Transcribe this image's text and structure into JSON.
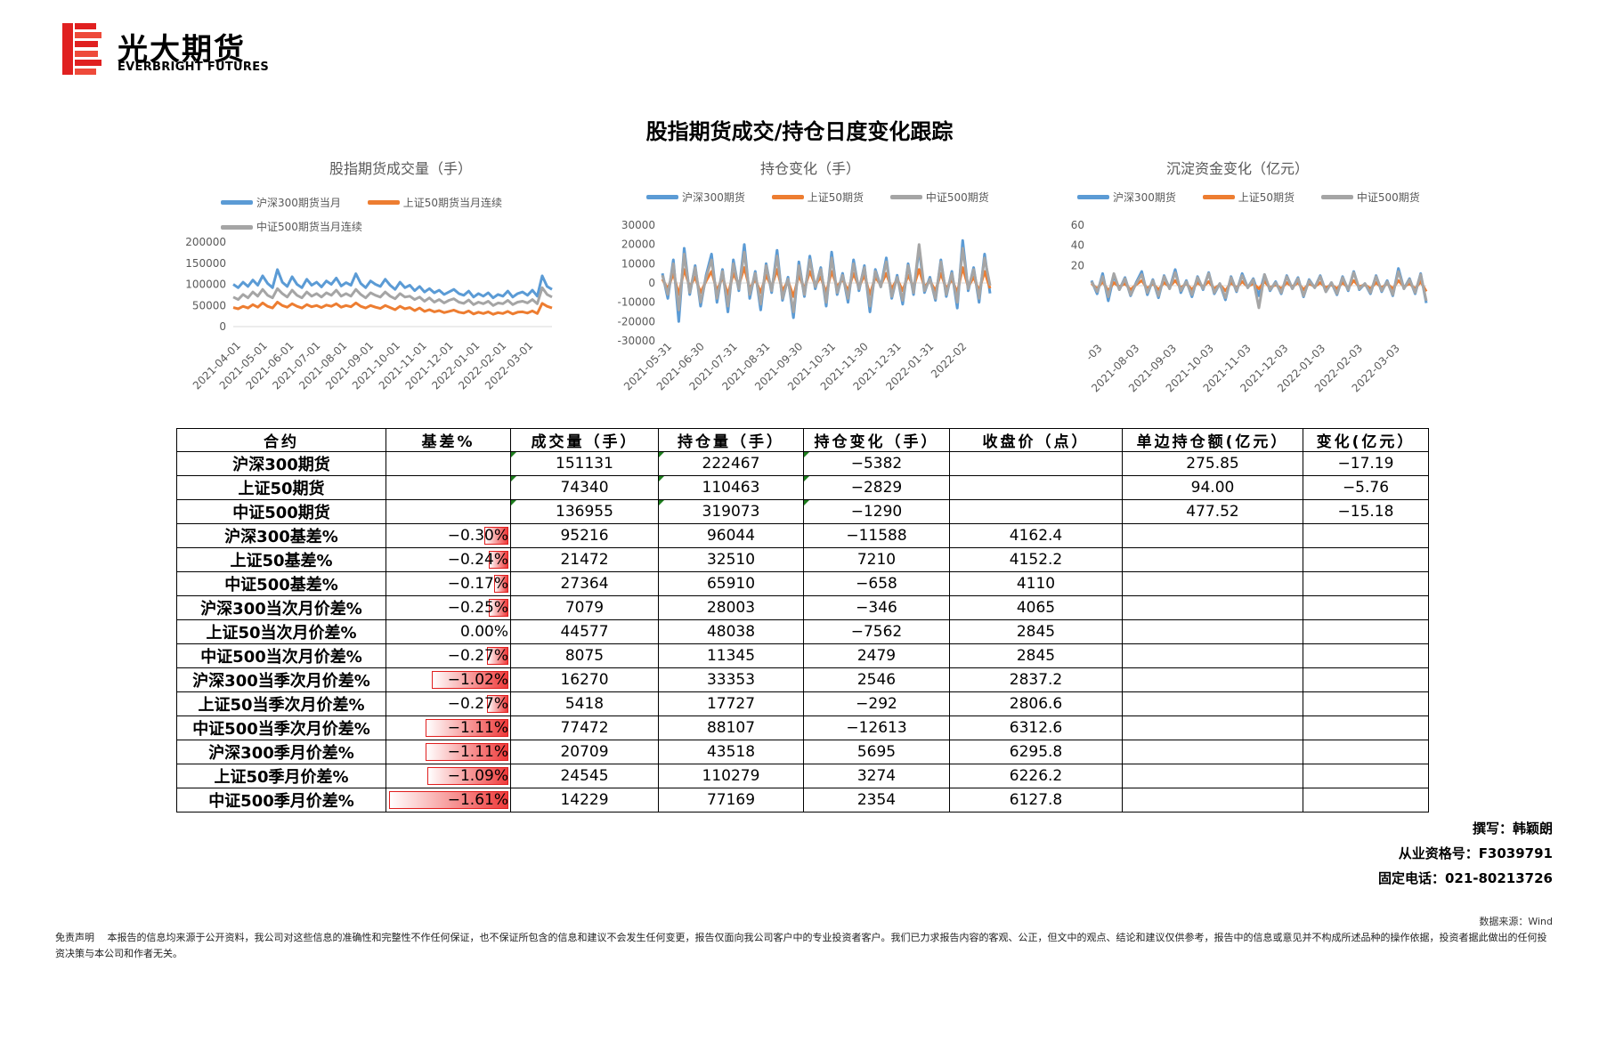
{
  "header": {
    "logo_cn": "光大期货",
    "logo_en": "EVERBRIGHT FUTURES",
    "colors": {
      "brand_red": "#e02020"
    }
  },
  "title": "股指期货成交/持仓日度变化跟踪",
  "colors": {
    "blue": "#5b9bd5",
    "orange": "#ed7d31",
    "gray": "#a5a5a5",
    "negative_bar": "#ef3b3b"
  },
  "chart_data": [
    {
      "type": "line",
      "title": "股指期货成交量（手）",
      "x_ticks": [
        "2021-04-01",
        "2021-05-01",
        "2021-06-01",
        "2021-07-01",
        "2021-08-01",
        "2021-09-01",
        "2021-10-01",
        "2021-11-01",
        "2021-12-01",
        "2022-01-01",
        "2022-02-01",
        "2022-03-01"
      ],
      "y_ticks": [
        "0",
        "50000",
        "100000",
        "150000",
        "200000"
      ],
      "ylim": [
        0,
        200000
      ],
      "grid": false,
      "legend_position": "top",
      "series": [
        {
          "name": "沪深300期货当月",
          "color": "#5b9bd5",
          "values": [
            100000,
            92000,
            105000,
            95000,
            110000,
            98000,
            120000,
            102000,
            92000,
            135000,
            105000,
            95000,
            118000,
            100000,
            92000,
            112000,
            98000,
            105000,
            94000,
            108000,
            100000,
            115000,
            96000,
            104000,
            98000,
            125000,
            102000,
            92000,
            108000,
            100000,
            95000,
            112000,
            98000,
            88000,
            105000,
            92000,
            98000,
            85000,
            95000,
            82000,
            90000,
            80000,
            86000,
            76000,
            82000,
            88000,
            78000,
            74000,
            84000,
            70000,
            78000,
            72000,
            80000,
            68000,
            76000,
            72000,
            84000,
            70000,
            78000,
            82000,
            74000,
            86000,
            72000,
            120000,
            95000,
            88000
          ]
        },
        {
          "name": "上证50期货当月连续",
          "color": "#ed7d31",
          "values": [
            45000,
            42000,
            48000,
            44000,
            52000,
            46000,
            56000,
            48000,
            44000,
            58000,
            50000,
            46000,
            54000,
            48000,
            44000,
            52000,
            47000,
            50000,
            45000,
            51000,
            48000,
            54000,
            46000,
            50000,
            47000,
            56000,
            48000,
            44000,
            50000,
            46000,
            43000,
            50000,
            45000,
            40000,
            48000,
            42000,
            45000,
            38000,
            44000,
            36000,
            40000,
            35000,
            38000,
            33000,
            36000,
            39000,
            34000,
            32000,
            37000,
            30000,
            34000,
            31000,
            35000,
            29000,
            33000,
            31000,
            36000,
            30000,
            34000,
            35000,
            32000,
            37000,
            31000,
            55000,
            48000,
            44000
          ]
        },
        {
          "name": "中证500期货当月连续",
          "color": "#a5a5a5",
          "values": [
            70000,
            64000,
            76000,
            68000,
            82000,
            72000,
            88000,
            74000,
            68000,
            90000,
            78000,
            70000,
            86000,
            74000,
            68000,
            82000,
            72000,
            78000,
            70000,
            80000,
            74000,
            86000,
            72000,
            78000,
            72000,
            88000,
            76000,
            68000,
            80000,
            74000,
            70000,
            82000,
            72000,
            66000,
            78000,
            70000,
            72000,
            64000,
            70000,
            60000,
            68000,
            58000,
            64000,
            56000,
            62000,
            66000,
            58000,
            55000,
            63000,
            52000,
            58000,
            54000,
            60000,
            50000,
            56000,
            54000,
            62000,
            52000,
            58000,
            60000,
            56000,
            64000,
            54000,
            92000,
            76000,
            70000
          ]
        }
      ]
    },
    {
      "type": "line",
      "title": "持仓变化（手）",
      "x_ticks": [
        "2021-05-31",
        "2021-06-30",
        "2021-07-31",
        "2021-08-31",
        "2021-09-30",
        "2021-10-31",
        "2021-11-30",
        "2021-12-31",
        "2022-01-31",
        "2022-02"
      ],
      "y_ticks": [
        "-30000",
        "-20000",
        "-10000",
        "0",
        "10000",
        "20000",
        "30000"
      ],
      "ylim": [
        -30000,
        30000
      ],
      "grid": false,
      "legend_position": "top",
      "series": [
        {
          "name": "沪深300期货",
          "color": "#5b9bd5",
          "values": [
            5000,
            -8000,
            12000,
            -20000,
            18000,
            -6000,
            9000,
            -12000,
            4000,
            15000,
            -10000,
            7000,
            -15000,
            12000,
            -4000,
            20000,
            -8000,
            6000,
            -14000,
            10000,
            -5000,
            17000,
            -9000,
            3000,
            -18000,
            11000,
            -7000,
            14000,
            -3000,
            8000,
            -12000,
            16000,
            -6000,
            5000,
            -10000,
            12000,
            -4000,
            9000,
            -15000,
            7000,
            -2000,
            13000,
            -8000,
            4000,
            -11000,
            10000,
            -6000,
            18000,
            -5000,
            3000,
            -9000,
            12000,
            -7000,
            6000,
            -13000,
            22000,
            -4000,
            8000,
            -10000,
            15000,
            -5382
          ]
        },
        {
          "name": "上证50期货",
          "color": "#ed7d31",
          "values": [
            2000,
            -3000,
            5000,
            -6000,
            7000,
            -2000,
            3000,
            -5000,
            1000,
            6000,
            -4000,
            3000,
            -6000,
            5000,
            -1000,
            8000,
            -3000,
            2000,
            -5000,
            4000,
            -2000,
            7000,
            -4000,
            1000,
            -7000,
            4000,
            -3000,
            6000,
            -1000,
            3000,
            -5000,
            6000,
            -2000,
            2000,
            -4000,
            5000,
            -2000,
            4000,
            -6000,
            3000,
            -1000,
            5000,
            -3000,
            2000,
            -4000,
            4000,
            -2000,
            7000,
            -2000,
            1000,
            -4000,
            5000,
            -3000,
            2000,
            -5000,
            8000,
            -2000,
            3000,
            -4000,
            6000,
            -2829
          ]
        },
        {
          "name": "中证500期货",
          "color": "#a5a5a5",
          "values": [
            4000,
            -6000,
            10000,
            -14000,
            15000,
            -5000,
            8000,
            -10000,
            3000,
            12000,
            -8000,
            6000,
            -12000,
            10000,
            -3000,
            16000,
            -6000,
            5000,
            -11000,
            9000,
            -4000,
            14000,
            -8000,
            2000,
            -15000,
            9000,
            -6000,
            12000,
            -2000,
            7000,
            -10000,
            13000,
            -5000,
            4000,
            -8000,
            10000,
            -3000,
            8000,
            -12000,
            6000,
            -2000,
            11000,
            -7000,
            3000,
            -9000,
            9000,
            -5000,
            20000,
            -4000,
            2000,
            -8000,
            11000,
            -6000,
            5000,
            -10000,
            18000,
            -3000,
            7000,
            -8000,
            13000,
            -1290
          ]
        }
      ]
    },
    {
      "type": "line",
      "title": "沉淀资金变化（亿元）",
      "x_ticks": [
        "-03",
        "2021-08-03",
        "2021-09-03",
        "2021-10-03",
        "2021-11-03",
        "2021-12-03",
        "2022-01-03",
        "2022-02-03",
        "2022-03-03"
      ],
      "y_ticks": [
        "20",
        "40",
        "60"
      ],
      "ylim": [
        -30,
        60
      ],
      "grid": false,
      "legend_position": "top",
      "series": [
        {
          "name": "沪深300期货",
          "color": "#5b9bd5",
          "values": [
            5,
            -8,
            12,
            -15,
            10,
            -4,
            8,
            -10,
            3,
            14,
            -9,
            6,
            -12,
            10,
            -3,
            16,
            -7,
            5,
            -11,
            9,
            -4,
            13,
            -8,
            2,
            -14,
            9,
            -6,
            12,
            -2,
            7,
            -10,
            11,
            -5,
            4,
            -8,
            10,
            -3,
            8,
            -11,
            6,
            -2,
            10,
            -6,
            3,
            -9,
            9,
            -5,
            14,
            -4,
            2,
            -8,
            10,
            -6,
            5,
            -10,
            17,
            -3,
            7,
            -8,
            12,
            -17.19
          ]
        },
        {
          "name": "上证50期货",
          "color": "#ed7d31",
          "values": [
            2,
            -3,
            4,
            -5,
            3,
            -1,
            2,
            -4,
            1,
            5,
            -3,
            2,
            -4,
            3,
            -1,
            5,
            -2,
            2,
            -4,
            3,
            -1,
            4,
            -3,
            1,
            -5,
            3,
            -2,
            4,
            -1,
            2,
            -3,
            4,
            -2,
            1,
            -3,
            3,
            -1,
            3,
            -4,
            2,
            -1,
            3,
            -2,
            1,
            -3,
            3,
            -2,
            5,
            -1,
            1,
            -3,
            3,
            -2,
            2,
            -3,
            5,
            -1,
            2,
            -3,
            4,
            -5.76
          ]
        },
        {
          "name": "中证500期货",
          "color": "#a5a5a5",
          "values": [
            4,
            -6,
            9,
            -11,
            12,
            -4,
            7,
            -9,
            2,
            11,
            -7,
            5,
            -10,
            9,
            -3,
            13,
            -5,
            4,
            -9,
            8,
            -3,
            12,
            -7,
            2,
            -12,
            8,
            -5,
            10,
            -2,
            6,
            -22,
            11,
            -4,
            3,
            -7,
            9,
            -3,
            7,
            -10,
            5,
            -2,
            9,
            -6,
            3,
            -8,
            8,
            -4,
            13,
            -3,
            2,
            -7,
            9,
            -5,
            4,
            -9,
            14,
            -3,
            6,
            -7,
            11,
            -15.18
          ]
        }
      ]
    }
  ],
  "table": {
    "headers": [
      "合约",
      "基差%",
      "成交量（手）",
      "持仓量（手）",
      "持仓变化（手）",
      "收盘价（点）",
      "单边持仓额(亿元）",
      "变化(亿元）"
    ],
    "rows": [
      {
        "name": "沪深300期货",
        "basis": "",
        "basis_value": null,
        "volume": "151131",
        "oi": "222467",
        "oi_change": "−5382",
        "close": "",
        "amount": "275.85",
        "change": "−17.19",
        "marks": true
      },
      {
        "name": "上证50期货",
        "basis": "",
        "basis_value": null,
        "volume": "74340",
        "oi": "110463",
        "oi_change": "−2829",
        "close": "",
        "amount": "94.00",
        "change": "−5.76",
        "marks": true
      },
      {
        "name": "中证500期货",
        "basis": "",
        "basis_value": null,
        "volume": "136955",
        "oi": "319073",
        "oi_change": "−1290",
        "close": "",
        "amount": "477.52",
        "change": "−15.18",
        "marks": true
      },
      {
        "name": "沪深300基差%",
        "basis": "−0.30%",
        "basis_value": -0.3,
        "volume": "95216",
        "oi": "96044",
        "oi_change": "−11588",
        "close": "4162.4",
        "amount": "",
        "change": "",
        "marks": false
      },
      {
        "name": "上证50基差%",
        "basis": "−0.24%",
        "basis_value": -0.24,
        "volume": "21472",
        "oi": "32510",
        "oi_change": "7210",
        "close": "4152.2",
        "amount": "",
        "change": "",
        "marks": false
      },
      {
        "name": "中证500基差%",
        "basis": "−0.17%",
        "basis_value": -0.17,
        "volume": "27364",
        "oi": "65910",
        "oi_change": "−658",
        "close": "4110",
        "amount": "",
        "change": "",
        "marks": false
      },
      {
        "name": "沪深300当次月价差%",
        "basis": "−0.25%",
        "basis_value": -0.25,
        "volume": "7079",
        "oi": "28003",
        "oi_change": "−346",
        "close": "4065",
        "amount": "",
        "change": "",
        "marks": false
      },
      {
        "name": "上证50当次月价差%",
        "basis": "0.00%",
        "basis_value": 0.0,
        "volume": "44577",
        "oi": "48038",
        "oi_change": "−7562",
        "close": "2845",
        "amount": "",
        "change": "",
        "marks": false
      },
      {
        "name": "中证500当次月价差%",
        "basis": "−0.27%",
        "basis_value": -0.27,
        "volume": "8075",
        "oi": "11345",
        "oi_change": "2479",
        "close": "2845",
        "amount": "",
        "change": "",
        "marks": false
      },
      {
        "name": "沪深300当季次月价差%",
        "basis": "−1.02%",
        "basis_value": -1.02,
        "volume": "16270",
        "oi": "33353",
        "oi_change": "2546",
        "close": "2837.2",
        "amount": "",
        "change": "",
        "marks": false
      },
      {
        "name": "上证50当季次月价差%",
        "basis": "−0.27%",
        "basis_value": -0.27,
        "volume": "5418",
        "oi": "17727",
        "oi_change": "−292",
        "close": "2806.6",
        "amount": "",
        "change": "",
        "marks": false
      },
      {
        "name": "中证500当季次月价差%",
        "basis": "−1.11%",
        "basis_value": -1.11,
        "volume": "77472",
        "oi": "88107",
        "oi_change": "−12613",
        "close": "6312.6",
        "amount": "",
        "change": "",
        "marks": false
      },
      {
        "name": "沪深300季月价差%",
        "basis": "−1.11%",
        "basis_value": -1.11,
        "volume": "20709",
        "oi": "43518",
        "oi_change": "5695",
        "close": "6295.8",
        "amount": "",
        "change": "",
        "marks": false
      },
      {
        "name": "上证50季月价差%",
        "basis": "−1.09%",
        "basis_value": -1.09,
        "volume": "24545",
        "oi": "110279",
        "oi_change": "3274",
        "close": "6226.2",
        "amount": "",
        "change": "",
        "marks": false
      },
      {
        "name": "中证500季月价差%",
        "basis": "−1.61%",
        "basis_value": -1.61,
        "volume": "14229",
        "oi": "77169",
        "oi_change": "2354",
        "close": "6127.8",
        "amount": "",
        "change": "",
        "marks": false
      }
    ]
  },
  "author": {
    "writer": "撰写：韩颖朗",
    "license": "从业资格号：F3039791",
    "phone": "固定电话：021-80213726"
  },
  "source": "数据来源：Wind",
  "disclaimer": "免责声明　 本报告的信息均来源于公开资料，我公司对这些信息的准确性和完整性不作任何保证，也不保证所包含的信息和建议不会发生任何变更，报告仅面向我公司客户中的专业投资者客户。我们已力求报告内容的客观、公正，但文中的观点、结论和建议仅供参考，报告中的信息或意见并不构成所述品种的操作依据，投资者据此做出的任何投资决策与本公司和作者无关。"
}
